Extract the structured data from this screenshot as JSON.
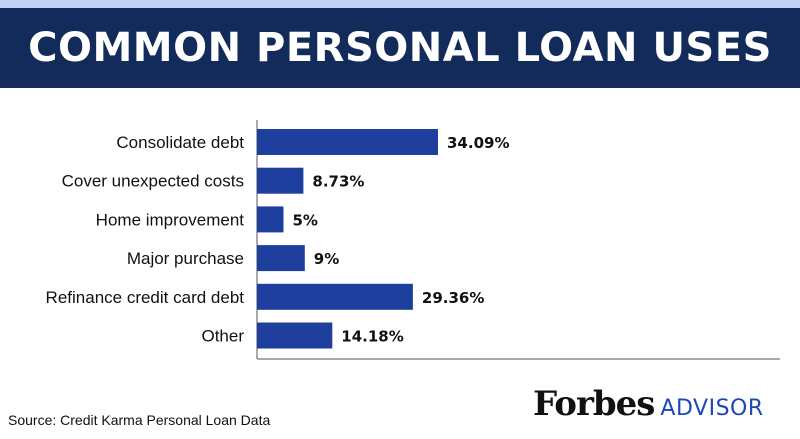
{
  "header": {
    "title": "COMMON PERSONAL LOAN USES"
  },
  "footer": {
    "source": "Source: Credit Karma Personal Loan Data",
    "brand_main": "Forbes",
    "brand_sub": "ADVISOR"
  },
  "colors": {
    "banner": "#132b5b",
    "bar": "#1f3f9e",
    "brand_accent": "#1f47b8"
  },
  "chart_data": {
    "type": "bar",
    "orientation": "horizontal",
    "title": "COMMON PERSONAL LOAN USES",
    "categories": [
      "Consolidate debt",
      "Cover unexpected costs",
      "Home improvement",
      "Major purchase",
      "Refinance credit card debt",
      "Other"
    ],
    "values": [
      34.09,
      8.73,
      5,
      9,
      29.36,
      14.18
    ],
    "value_labels": [
      "34.09%",
      "8.73%",
      "5%",
      "9%",
      "29.36%",
      "14.18%"
    ],
    "xlabel": "",
    "ylabel": "",
    "grid": false,
    "legend": "none"
  }
}
